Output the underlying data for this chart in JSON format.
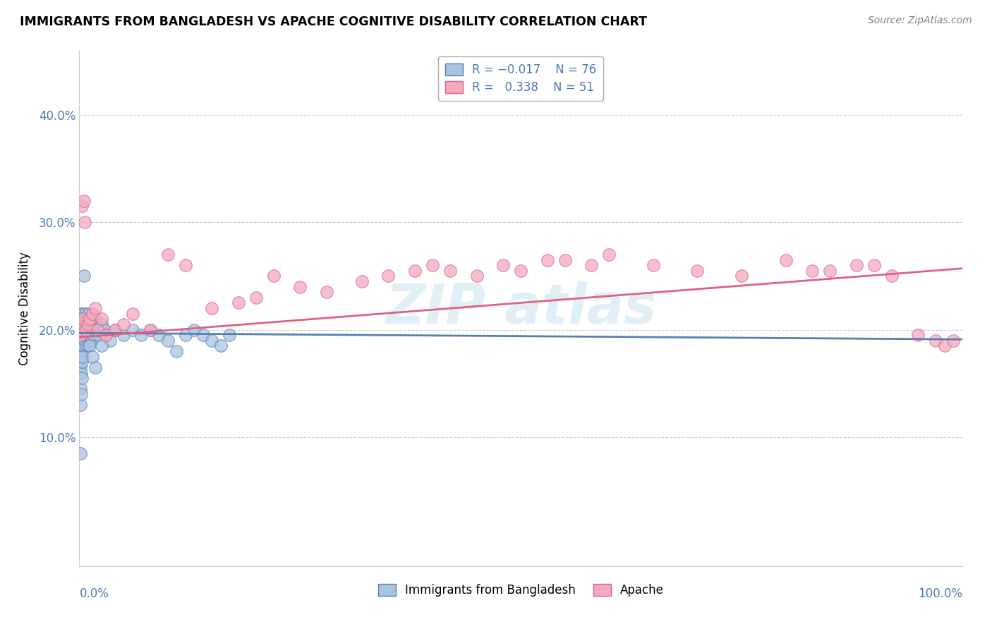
{
  "title": "IMMIGRANTS FROM BANGLADESH VS APACHE COGNITIVE DISABILITY CORRELATION CHART",
  "source": "Source: ZipAtlas.com",
  "ylabel": "Cognitive Disability",
  "color_blue": "#aac4e0",
  "color_pink": "#f4aac0",
  "line_blue": "#5580b0",
  "line_pink": "#e06080",
  "text_blue": "#4a7ab5",
  "xlim": [
    0.0,
    1.0
  ],
  "ylim": [
    -0.02,
    0.46
  ],
  "ytick_vals": [
    0.0,
    0.1,
    0.2,
    0.3,
    0.4
  ],
  "ytick_labels": [
    "",
    "10.0%",
    "20.0%",
    "30.0%",
    "40.0%"
  ],
  "blue_line_y0": 0.197,
  "blue_line_y1": 0.191,
  "pink_line_y0": 0.193,
  "pink_line_y1": 0.257,
  "bangladesh_x": [
    0.001,
    0.001,
    0.001,
    0.001,
    0.001,
    0.002,
    0.002,
    0.002,
    0.002,
    0.002,
    0.003,
    0.003,
    0.003,
    0.003,
    0.003,
    0.004,
    0.004,
    0.004,
    0.004,
    0.005,
    0.005,
    0.005,
    0.006,
    0.006,
    0.007,
    0.007,
    0.008,
    0.008,
    0.009,
    0.009,
    0.01,
    0.01,
    0.011,
    0.012,
    0.013,
    0.014,
    0.015,
    0.016,
    0.017,
    0.018,
    0.02,
    0.022,
    0.025,
    0.028,
    0.03,
    0.035,
    0.04,
    0.05,
    0.06,
    0.07,
    0.08,
    0.09,
    0.1,
    0.11,
    0.12,
    0.13,
    0.14,
    0.15,
    0.16,
    0.17,
    0.001,
    0.001,
    0.001,
    0.001,
    0.002,
    0.002,
    0.003,
    0.003,
    0.004,
    0.005,
    0.012,
    0.015,
    0.018,
    0.025
  ],
  "bangladesh_y": [
    0.19,
    0.2,
    0.185,
    0.195,
    0.175,
    0.205,
    0.195,
    0.185,
    0.2,
    0.21,
    0.195,
    0.185,
    0.205,
    0.2,
    0.215,
    0.2,
    0.215,
    0.185,
    0.195,
    0.195,
    0.205,
    0.21,
    0.19,
    0.2,
    0.215,
    0.195,
    0.205,
    0.185,
    0.21,
    0.195,
    0.2,
    0.185,
    0.215,
    0.205,
    0.195,
    0.19,
    0.2,
    0.195,
    0.205,
    0.21,
    0.2,
    0.195,
    0.205,
    0.2,
    0.195,
    0.19,
    0.2,
    0.195,
    0.2,
    0.195,
    0.2,
    0.195,
    0.19,
    0.18,
    0.195,
    0.2,
    0.195,
    0.19,
    0.185,
    0.195,
    0.165,
    0.145,
    0.13,
    0.085,
    0.16,
    0.14,
    0.17,
    0.155,
    0.175,
    0.25,
    0.185,
    0.175,
    0.165,
    0.185
  ],
  "apache_x": [
    0.001,
    0.002,
    0.003,
    0.004,
    0.005,
    0.006,
    0.008,
    0.01,
    0.012,
    0.015,
    0.018,
    0.02,
    0.025,
    0.03,
    0.04,
    0.05,
    0.06,
    0.08,
    0.1,
    0.12,
    0.15,
    0.18,
    0.2,
    0.22,
    0.25,
    0.28,
    0.32,
    0.35,
    0.38,
    0.4,
    0.42,
    0.45,
    0.48,
    0.5,
    0.53,
    0.55,
    0.58,
    0.6,
    0.65,
    0.7,
    0.75,
    0.8,
    0.83,
    0.85,
    0.88,
    0.9,
    0.92,
    0.95,
    0.97,
    0.98,
    0.99
  ],
  "apache_y": [
    0.195,
    0.2,
    0.315,
    0.21,
    0.32,
    0.3,
    0.2,
    0.205,
    0.21,
    0.215,
    0.22,
    0.2,
    0.21,
    0.195,
    0.2,
    0.205,
    0.215,
    0.2,
    0.27,
    0.26,
    0.22,
    0.225,
    0.23,
    0.25,
    0.24,
    0.235,
    0.245,
    0.25,
    0.255,
    0.26,
    0.255,
    0.25,
    0.26,
    0.255,
    0.265,
    0.265,
    0.26,
    0.27,
    0.26,
    0.255,
    0.25,
    0.265,
    0.255,
    0.255,
    0.26,
    0.26,
    0.25,
    0.195,
    0.19,
    0.185,
    0.19
  ]
}
